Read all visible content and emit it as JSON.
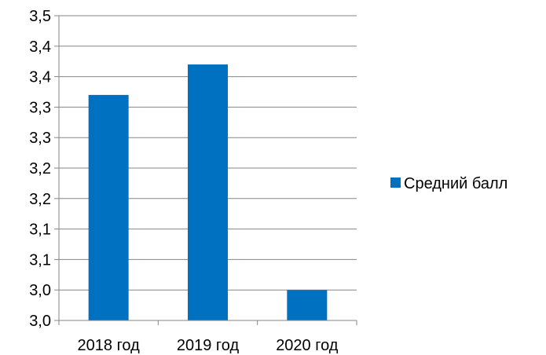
{
  "chart_data": {
    "type": "bar",
    "categories": [
      "2018 год",
      "2019 год",
      "2020 год"
    ],
    "series": [
      {
        "name": "Средний балл",
        "values": [
          3.37,
          3.42,
          3.05
        ],
        "color": "#0070C0"
      }
    ],
    "ylim": [
      3.0,
      3.5
    ],
    "yticks": [
      3.0,
      3.05,
      3.1,
      3.15,
      3.2,
      3.25,
      3.3,
      3.35,
      3.4,
      3.45,
      3.5
    ],
    "ytick_labels": [
      "3,0",
      "3,0",
      "3,1",
      "3,1",
      "3,2",
      "3,2",
      "3,3",
      "3,3",
      "3,4",
      "3,4",
      "3,5"
    ],
    "grid": true,
    "legend_position": "right",
    "title": "",
    "xlabel": "",
    "ylabel": ""
  }
}
